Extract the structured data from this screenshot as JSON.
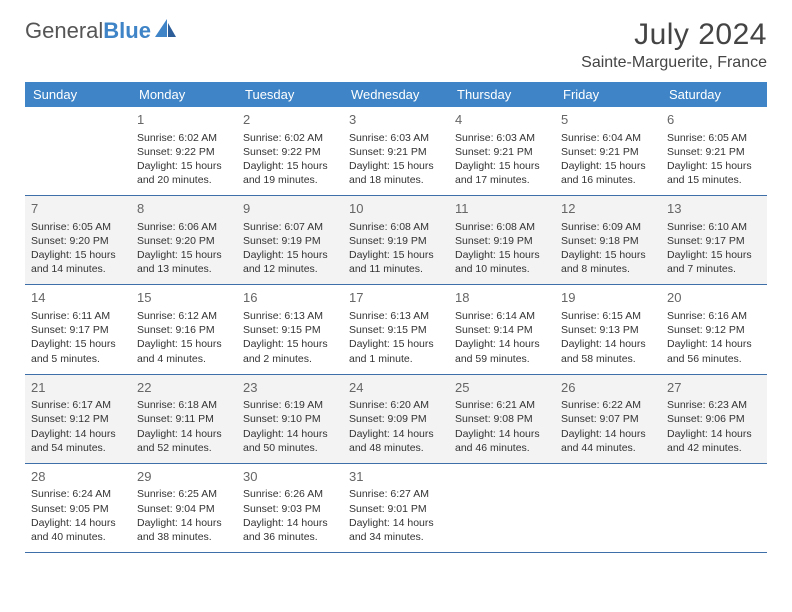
{
  "logo": {
    "text1": "General",
    "text2": "Blue"
  },
  "header": {
    "month_title": "July 2024",
    "location": "Sainte-Marguerite, France"
  },
  "colors": {
    "header_bg": "#3e84c6",
    "row_border": "#3e6fa8",
    "alt_row_bg": "#f3f3f3",
    "page_bg": "#ffffff"
  },
  "day_names": [
    "Sunday",
    "Monday",
    "Tuesday",
    "Wednesday",
    "Thursday",
    "Friday",
    "Saturday"
  ],
  "weeks": [
    [
      null,
      {
        "d": "1",
        "sr": "6:02 AM",
        "ss": "9:22 PM",
        "dl": "Daylight: 15 hours and 20 minutes."
      },
      {
        "d": "2",
        "sr": "6:02 AM",
        "ss": "9:22 PM",
        "dl": "Daylight: 15 hours and 19 minutes."
      },
      {
        "d": "3",
        "sr": "6:03 AM",
        "ss": "9:21 PM",
        "dl": "Daylight: 15 hours and 18 minutes."
      },
      {
        "d": "4",
        "sr": "6:03 AM",
        "ss": "9:21 PM",
        "dl": "Daylight: 15 hours and 17 minutes."
      },
      {
        "d": "5",
        "sr": "6:04 AM",
        "ss": "9:21 PM",
        "dl": "Daylight: 15 hours and 16 minutes."
      },
      {
        "d": "6",
        "sr": "6:05 AM",
        "ss": "9:21 PM",
        "dl": "Daylight: 15 hours and 15 minutes."
      }
    ],
    [
      {
        "d": "7",
        "sr": "6:05 AM",
        "ss": "9:20 PM",
        "dl": "Daylight: 15 hours and 14 minutes."
      },
      {
        "d": "8",
        "sr": "6:06 AM",
        "ss": "9:20 PM",
        "dl": "Daylight: 15 hours and 13 minutes."
      },
      {
        "d": "9",
        "sr": "6:07 AM",
        "ss": "9:19 PM",
        "dl": "Daylight: 15 hours and 12 minutes."
      },
      {
        "d": "10",
        "sr": "6:08 AM",
        "ss": "9:19 PM",
        "dl": "Daylight: 15 hours and 11 minutes."
      },
      {
        "d": "11",
        "sr": "6:08 AM",
        "ss": "9:19 PM",
        "dl": "Daylight: 15 hours and 10 minutes."
      },
      {
        "d": "12",
        "sr": "6:09 AM",
        "ss": "9:18 PM",
        "dl": "Daylight: 15 hours and 8 minutes."
      },
      {
        "d": "13",
        "sr": "6:10 AM",
        "ss": "9:17 PM",
        "dl": "Daylight: 15 hours and 7 minutes."
      }
    ],
    [
      {
        "d": "14",
        "sr": "6:11 AM",
        "ss": "9:17 PM",
        "dl": "Daylight: 15 hours and 5 minutes."
      },
      {
        "d": "15",
        "sr": "6:12 AM",
        "ss": "9:16 PM",
        "dl": "Daylight: 15 hours and 4 minutes."
      },
      {
        "d": "16",
        "sr": "6:13 AM",
        "ss": "9:15 PM",
        "dl": "Daylight: 15 hours and 2 minutes."
      },
      {
        "d": "17",
        "sr": "6:13 AM",
        "ss": "9:15 PM",
        "dl": "Daylight: 15 hours and 1 minute."
      },
      {
        "d": "18",
        "sr": "6:14 AM",
        "ss": "9:14 PM",
        "dl": "Daylight: 14 hours and 59 minutes."
      },
      {
        "d": "19",
        "sr": "6:15 AM",
        "ss": "9:13 PM",
        "dl": "Daylight: 14 hours and 58 minutes."
      },
      {
        "d": "20",
        "sr": "6:16 AM",
        "ss": "9:12 PM",
        "dl": "Daylight: 14 hours and 56 minutes."
      }
    ],
    [
      {
        "d": "21",
        "sr": "6:17 AM",
        "ss": "9:12 PM",
        "dl": "Daylight: 14 hours and 54 minutes."
      },
      {
        "d": "22",
        "sr": "6:18 AM",
        "ss": "9:11 PM",
        "dl": "Daylight: 14 hours and 52 minutes."
      },
      {
        "d": "23",
        "sr": "6:19 AM",
        "ss": "9:10 PM",
        "dl": "Daylight: 14 hours and 50 minutes."
      },
      {
        "d": "24",
        "sr": "6:20 AM",
        "ss": "9:09 PM",
        "dl": "Daylight: 14 hours and 48 minutes."
      },
      {
        "d": "25",
        "sr": "6:21 AM",
        "ss": "9:08 PM",
        "dl": "Daylight: 14 hours and 46 minutes."
      },
      {
        "d": "26",
        "sr": "6:22 AM",
        "ss": "9:07 PM",
        "dl": "Daylight: 14 hours and 44 minutes."
      },
      {
        "d": "27",
        "sr": "6:23 AM",
        "ss": "9:06 PM",
        "dl": "Daylight: 14 hours and 42 minutes."
      }
    ],
    [
      {
        "d": "28",
        "sr": "6:24 AM",
        "ss": "9:05 PM",
        "dl": "Daylight: 14 hours and 40 minutes."
      },
      {
        "d": "29",
        "sr": "6:25 AM",
        "ss": "9:04 PM",
        "dl": "Daylight: 14 hours and 38 minutes."
      },
      {
        "d": "30",
        "sr": "6:26 AM",
        "ss": "9:03 PM",
        "dl": "Daylight: 14 hours and 36 minutes."
      },
      {
        "d": "31",
        "sr": "6:27 AM",
        "ss": "9:01 PM",
        "dl": "Daylight: 14 hours and 34 minutes."
      },
      null,
      null,
      null
    ]
  ],
  "labels": {
    "sunrise_prefix": "Sunrise: ",
    "sunset_prefix": "Sunset: "
  }
}
